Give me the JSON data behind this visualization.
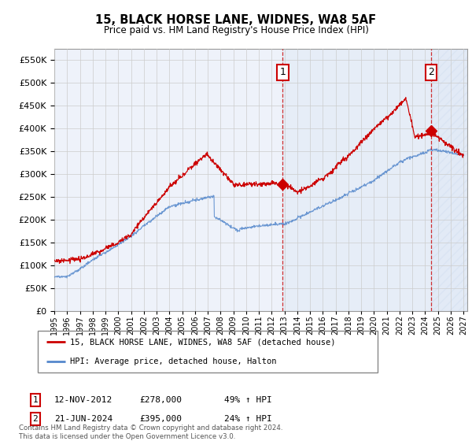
{
  "title": "15, BLACK HORSE LANE, WIDNES, WA8 5AF",
  "subtitle": "Price paid vs. HM Land Registry's House Price Index (HPI)",
  "ylim": [
    0,
    575000
  ],
  "yticks": [
    0,
    50000,
    100000,
    150000,
    200000,
    250000,
    300000,
    350000,
    400000,
    450000,
    500000,
    550000
  ],
  "hpi_color": "#5588cc",
  "price_color": "#cc0000",
  "marker1_year": 2012.87,
  "marker1_price": 278000,
  "marker2_year": 2024.47,
  "marker2_price": 395000,
  "legend_line1": "15, BLACK HORSE LANE, WIDNES, WA8 5AF (detached house)",
  "legend_line2": "HPI: Average price, detached house, Halton",
  "grid_color": "#cccccc",
  "bg_color": "#ffffff",
  "plot_bg_color": "#eef2fa",
  "shade_color": "#dde8f5",
  "hatch_color": "#c8d8ee"
}
